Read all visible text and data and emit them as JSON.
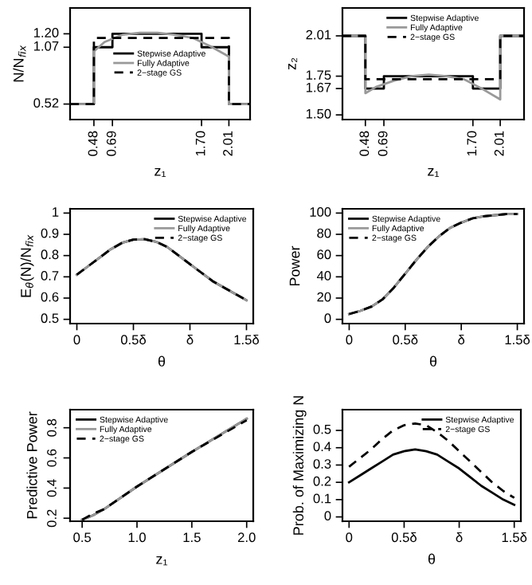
{
  "chart_data": [
    {
      "type": "line",
      "xlabel": "z₁",
      "ylabel": "N/N$_{fix}$",
      "xlim": [
        0.21,
        2.25
      ],
      "ylim": [
        0.37,
        1.45
      ],
      "xticks": [
        0.48,
        0.69,
        {
          "value": 1.7,
          "label": "1.70"
        },
        2.01
      ],
      "yticks": [
        0.52,
        1.07,
        {
          "value": 1.2,
          "label": "1.20"
        }
      ],
      "grid": false,
      "legend": "center",
      "series": [
        {
          "name": "Stepwise Adaptive",
          "color": "#000000",
          "line_style": "solid",
          "x": [
            0.21,
            0.48,
            0.48,
            0.69,
            0.69,
            1.7,
            1.7,
            2.01,
            2.01,
            2.25
          ],
          "values": [
            0.52,
            0.52,
            1.07,
            1.07,
            1.2,
            1.2,
            1.07,
            1.07,
            0.52,
            0.52
          ]
        },
        {
          "name": "Fully Adaptive",
          "color": "#999999",
          "line_style": "solid",
          "x": [
            0.21,
            0.48,
            0.48,
            0.6,
            0.8,
            1.0,
            1.2,
            1.4,
            1.6,
            1.8,
            2.01,
            2.01,
            2.25
          ],
          "values": [
            0.52,
            0.52,
            1.03,
            1.12,
            1.19,
            1.21,
            1.21,
            1.19,
            1.16,
            1.08,
            0.98,
            0.52,
            0.52
          ]
        },
        {
          "name": "2−stage GS",
          "color": "#000000",
          "line_style": "dashed",
          "x": [
            0.21,
            0.48,
            0.48,
            2.01,
            2.01,
            2.25
          ],
          "values": [
            0.52,
            0.52,
            1.16,
            1.16,
            0.52,
            0.52
          ]
        }
      ]
    },
    {
      "type": "line",
      "xlabel": "z₁",
      "ylabel": "z₂",
      "xlim": [
        0.22,
        2.28
      ],
      "ylim": [
        1.47,
        2.19
      ],
      "xticks": [
        0.48,
        0.69,
        {
          "value": 1.7,
          "label": "1.70"
        },
        2.01
      ],
      "yticks": [
        {
          "value": 1.5,
          "label": "1.50"
        },
        1.67,
        1.75,
        2.01
      ],
      "grid": false,
      "legend": "top",
      "series": [
        {
          "name": "Stepwise Adaptive",
          "color": "#000000",
          "line_style": "solid",
          "x": [
            0.22,
            0.48,
            0.48,
            0.69,
            0.69,
            1.7,
            1.7,
            2.01,
            2.01,
            2.28
          ],
          "values": [
            2.01,
            2.01,
            1.67,
            1.67,
            1.75,
            1.75,
            1.67,
            1.67,
            2.01,
            2.01
          ]
        },
        {
          "name": "Fully Adaptive",
          "color": "#999999",
          "line_style": "solid",
          "x": [
            0.22,
            0.48,
            0.48,
            0.6,
            0.8,
            1.0,
            1.2,
            1.4,
            1.6,
            1.8,
            2.01,
            2.01,
            2.28
          ],
          "values": [
            2.01,
            2.01,
            1.64,
            1.68,
            1.72,
            1.75,
            1.76,
            1.75,
            1.73,
            1.67,
            1.6,
            2.01,
            2.01
          ]
        },
        {
          "name": "2−stage GS",
          "color": "#000000",
          "line_style": "dashed",
          "x": [
            0.22,
            0.48,
            0.48,
            2.01,
            2.01,
            2.28
          ],
          "values": [
            2.01,
            2.01,
            1.73,
            1.73,
            2.01,
            2.01
          ]
        }
      ]
    },
    {
      "type": "line",
      "xlabel": "θ",
      "ylabel": "E$_{θ}$(N)/N$_{fix}$",
      "xlim": [
        -0.06,
        1.56
      ],
      "ylim": [
        0.48,
        1.02
      ],
      "xticks": [
        0,
        {
          "value": 0.5,
          "label": "0.5δ"
        },
        {
          "value": 1,
          "label": "δ"
        },
        {
          "value": 1.5,
          "label": "1.5δ"
        }
      ],
      "yticks": [
        0.5,
        0.6,
        0.7,
        0.8,
        0.9,
        1
      ],
      "grid": false,
      "legend": "top right",
      "series": [
        {
          "name": "Stepwise Adaptive",
          "color": "#000000",
          "line_style": "solid",
          "x": [
            0,
            0.1,
            0.2,
            0.3,
            0.4,
            0.5,
            0.6,
            0.7,
            0.8,
            0.9,
            1.0,
            1.1,
            1.2,
            1.3,
            1.4,
            1.5
          ],
          "values": [
            0.71,
            0.75,
            0.79,
            0.83,
            0.86,
            0.875,
            0.877,
            0.865,
            0.84,
            0.8,
            0.76,
            0.72,
            0.68,
            0.65,
            0.62,
            0.59
          ]
        },
        {
          "name": "Fully Adaptive",
          "color": "#999999",
          "line_style": "solid",
          "x": [
            0,
            0.1,
            0.2,
            0.3,
            0.4,
            0.5,
            0.6,
            0.7,
            0.8,
            0.9,
            1.0,
            1.1,
            1.2,
            1.3,
            1.4,
            1.5
          ],
          "values": [
            0.71,
            0.75,
            0.79,
            0.83,
            0.86,
            0.875,
            0.877,
            0.865,
            0.84,
            0.8,
            0.76,
            0.72,
            0.68,
            0.65,
            0.62,
            0.59
          ]
        },
        {
          "name": "2−stage GS",
          "color": "#000000",
          "line_style": "dashed",
          "x": [
            0,
            0.1,
            0.2,
            0.3,
            0.4,
            0.5,
            0.6,
            0.7,
            0.8,
            0.9,
            1.0,
            1.1,
            1.2,
            1.3,
            1.4,
            1.5
          ],
          "values": [
            0.71,
            0.75,
            0.79,
            0.83,
            0.86,
            0.875,
            0.877,
            0.865,
            0.84,
            0.8,
            0.76,
            0.72,
            0.68,
            0.65,
            0.62,
            0.59
          ]
        }
      ]
    },
    {
      "type": "line",
      "xlabel": "θ",
      "ylabel": "Power",
      "xlim": [
        -0.06,
        1.56
      ],
      "ylim": [
        -4,
        104
      ],
      "xticks": [
        0,
        {
          "value": 0.5,
          "label": "0.5δ"
        },
        {
          "value": 1,
          "label": "δ"
        },
        {
          "value": 1.5,
          "label": "1.5δ"
        }
      ],
      "yticks": [
        0,
        20,
        40,
        60,
        80,
        100
      ],
      "grid": false,
      "legend": "top left",
      "series": [
        {
          "name": "Stepwise Adaptive",
          "color": "#000000",
          "line_style": "solid",
          "x": [
            0,
            0.1,
            0.2,
            0.3,
            0.4,
            0.5,
            0.6,
            0.7,
            0.8,
            0.9,
            1.0,
            1.1,
            1.2,
            1.3,
            1.4,
            1.5
          ],
          "values": [
            5,
            8,
            12,
            19,
            30,
            43,
            56,
            68,
            78,
            86,
            91,
            95,
            97,
            98,
            99,
            99
          ]
        },
        {
          "name": "Fully Adaptive",
          "color": "#999999",
          "line_style": "solid",
          "x": [
            0,
            0.1,
            0.2,
            0.3,
            0.4,
            0.5,
            0.6,
            0.7,
            0.8,
            0.9,
            1.0,
            1.1,
            1.2,
            1.3,
            1.4,
            1.5
          ],
          "values": [
            5,
            8,
            12,
            19,
            30,
            43,
            56,
            68,
            78,
            86,
            91,
            95,
            97,
            98,
            99,
            99
          ]
        },
        {
          "name": "2−stage GS",
          "color": "#000000",
          "line_style": "dashed",
          "x": [
            0,
            0.1,
            0.2,
            0.3,
            0.4,
            0.5,
            0.6,
            0.7,
            0.8,
            0.9,
            1.0,
            1.1,
            1.2,
            1.3,
            1.4,
            1.5
          ],
          "values": [
            5,
            8,
            12,
            19,
            30,
            43,
            56,
            68,
            78,
            86,
            91,
            95,
            97,
            98,
            99,
            99
          ]
        }
      ]
    },
    {
      "type": "line",
      "xlabel": "z₁",
      "ylabel": "Predictive Power",
      "xlim": [
        0.39,
        2.06
      ],
      "ylim": [
        0.18,
        0.92
      ],
      "xticks": [
        0.5,
        {
          "value": 1,
          "label": "1.0"
        },
        1.5,
        {
          "value": 2,
          "label": "2.0"
        }
      ],
      "yticks": [
        0.2,
        0.4,
        0.6,
        0.8
      ],
      "grid": false,
      "legend": "top left",
      "series": [
        {
          "name": "Stepwise Adaptive",
          "color": "#000000",
          "line_style": "solid",
          "x": [
            0.5,
            0.6,
            0.7,
            1.0,
            1.5,
            2.0
          ],
          "values": [
            0.19,
            0.22,
            0.26,
            0.41,
            0.64,
            0.86
          ]
        },
        {
          "name": "Fully Adaptive",
          "color": "#999999",
          "line_style": "solid",
          "x": [
            0.5,
            0.6,
            0.7,
            1.0,
            1.5,
            2.0
          ],
          "values": [
            0.19,
            0.22,
            0.26,
            0.41,
            0.64,
            0.86
          ]
        },
        {
          "name": "2−stage GS",
          "color": "#000000",
          "line_style": "dashed",
          "x": [
            0.5,
            0.6,
            0.7,
            1.0,
            1.5,
            2.0
          ],
          "values": [
            0.19,
            0.23,
            0.26,
            0.41,
            0.64,
            0.85
          ]
        }
      ]
    },
    {
      "type": "line",
      "xlabel": "θ",
      "ylabel": "Prob. of Maximizing N",
      "xlim": [
        -0.06,
        1.56
      ],
      "ylim": [
        -0.025,
        0.62
      ],
      "xticks": [
        0,
        {
          "value": 0.5,
          "label": "0.5δ"
        },
        {
          "value": 1,
          "label": "δ"
        },
        {
          "value": 1.5,
          "label": "1.5δ"
        }
      ],
      "yticks": [
        0,
        0.1,
        0.2,
        0.3,
        0.4,
        0.5
      ],
      "grid": false,
      "legend": "top right",
      "series": [
        {
          "name": "Stepwise Adaptive",
          "color": "#000000",
          "line_style": "solid",
          "x": [
            0,
            0.1,
            0.2,
            0.3,
            0.4,
            0.5,
            0.6,
            0.7,
            0.8,
            0.9,
            1.0,
            1.1,
            1.2,
            1.3,
            1.4,
            1.5
          ],
          "values": [
            0.2,
            0.24,
            0.28,
            0.32,
            0.36,
            0.38,
            0.39,
            0.38,
            0.36,
            0.32,
            0.28,
            0.23,
            0.18,
            0.14,
            0.1,
            0.07
          ]
        },
        {
          "name": "2−stage GS",
          "color": "#000000",
          "line_style": "dashed",
          "x": [
            0,
            0.1,
            0.2,
            0.3,
            0.4,
            0.5,
            0.6,
            0.7,
            0.8,
            0.9,
            1.0,
            1.1,
            1.2,
            1.3,
            1.4,
            1.5
          ],
          "values": [
            0.29,
            0.34,
            0.39,
            0.45,
            0.5,
            0.53,
            0.54,
            0.53,
            0.49,
            0.44,
            0.38,
            0.32,
            0.26,
            0.2,
            0.15,
            0.11
          ]
        }
      ]
    }
  ]
}
